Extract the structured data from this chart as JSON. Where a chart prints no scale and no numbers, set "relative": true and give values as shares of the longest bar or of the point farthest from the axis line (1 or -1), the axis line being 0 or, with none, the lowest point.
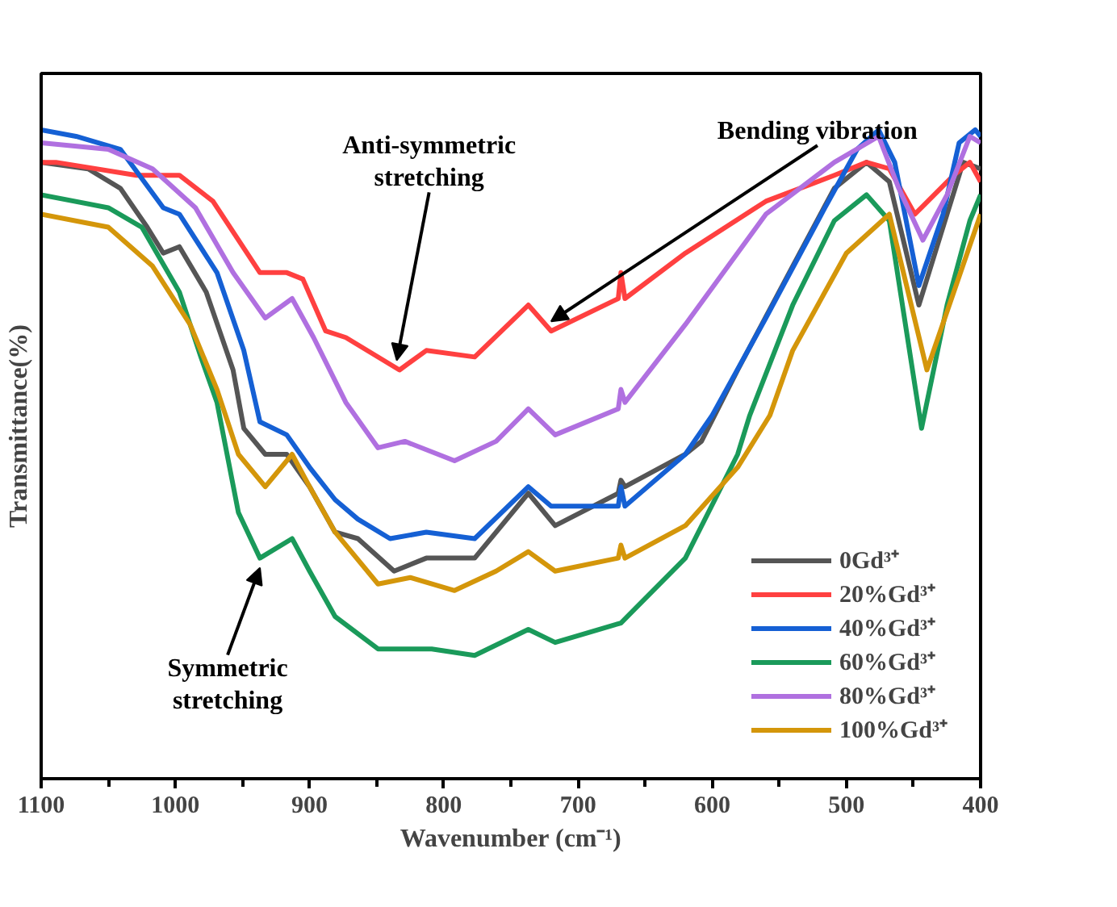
{
  "chart_data": {
    "type": "line",
    "relative": true,
    "xlabel": "Wavenumber (cm⁻¹)",
    "ylabel": "Transmittance(%)",
    "xlim": [
      1100,
      400
    ],
    "xticks": [
      1100,
      {
        "value": 1050,
        "label": null
      },
      1000,
      {
        "value": 950,
        "label": null
      },
      900,
      {
        "value": 850,
        "label": null
      },
      800,
      {
        "value": 750,
        "label": null
      },
      700,
      {
        "value": 650,
        "label": null
      },
      600,
      {
        "value": 550,
        "label": null
      },
      500,
      {
        "value": 450,
        "label": null
      },
      400
    ],
    "grid": false,
    "legend": "bottom right",
    "marker": "none",
    "line_style": "solid",
    "annotations": [
      {
        "text": "Anti-symmetric\nstretching",
        "x": 835,
        "y": 0.63
      },
      {
        "text": "Bending vibration",
        "x": 720,
        "y": 0.69
      },
      {
        "text": "Symmetric\nstretching",
        "x": 937,
        "y": 0.34
      }
    ],
    "series": [
      {
        "name": "0Gd³⁺",
        "color": "#555555",
        "x": [
          1100,
          1065,
          1041,
          1021,
          1009,
          997,
          977,
          957,
          949,
          933,
          917,
          900,
          881,
          864,
          837,
          813,
          777,
          737,
          717,
          670,
          668,
          665,
          620,
          608,
          581,
          540,
          509,
          485,
          468,
          446,
          425,
          413,
          400
        ],
        "values": [
          0.95,
          0.94,
          0.91,
          0.85,
          0.81,
          0.82,
          0.75,
          0.63,
          0.54,
          0.5,
          0.5,
          0.45,
          0.38,
          0.37,
          0.32,
          0.34,
          0.34,
          0.44,
          0.39,
          0.44,
          0.46,
          0.45,
          0.5,
          0.52,
          0.63,
          0.79,
          0.91,
          0.95,
          0.92,
          0.73,
          0.87,
          0.95,
          0.94
        ]
      },
      {
        "name": "20%Gd³⁺",
        "color": "#ff4040",
        "x": [
          1100,
          1089,
          1029,
          997,
          972,
          937,
          917,
          905,
          888,
          873,
          833,
          813,
          777,
          737,
          720,
          670,
          668,
          665,
          620,
          560,
          509,
          485,
          468,
          449,
          420,
          408,
          400
        ],
        "values": [
          0.95,
          0.95,
          0.93,
          0.93,
          0.89,
          0.78,
          0.78,
          0.77,
          0.69,
          0.68,
          0.63,
          0.66,
          0.65,
          0.73,
          0.69,
          0.74,
          0.78,
          0.74,
          0.81,
          0.89,
          0.93,
          0.95,
          0.94,
          0.87,
          0.93,
          0.95,
          0.92
        ]
      },
      {
        "name": "40%Gd³⁺",
        "color": "#1560d4",
        "x": [
          1100,
          1074,
          1041,
          1009,
          997,
          969,
          949,
          937,
          917,
          900,
          881,
          864,
          840,
          813,
          777,
          737,
          720,
          670,
          668,
          665,
          620,
          600,
          560,
          516,
          492,
          476,
          464,
          446,
          428,
          416,
          404,
          400
        ],
        "values": [
          1.0,
          0.99,
          0.97,
          0.88,
          0.87,
          0.78,
          0.66,
          0.55,
          0.53,
          0.48,
          0.43,
          0.4,
          0.37,
          0.38,
          0.37,
          0.45,
          0.42,
          0.42,
          0.45,
          0.42,
          0.5,
          0.56,
          0.71,
          0.88,
          0.97,
          1.0,
          0.95,
          0.76,
          0.87,
          0.98,
          1.0,
          0.99
        ]
      },
      {
        "name": "60%Gd³⁺",
        "color": "#1a9a5a",
        "x": [
          1100,
          1050,
          1025,
          997,
          981,
          969,
          953,
          937,
          913,
          900,
          881,
          849,
          809,
          777,
          737,
          717,
          668,
          620,
          581,
          572,
          540,
          509,
          485,
          468,
          444,
          425,
          408,
          400
        ],
        "values": [
          0.9,
          0.88,
          0.85,
          0.75,
          0.65,
          0.58,
          0.41,
          0.34,
          0.37,
          0.32,
          0.25,
          0.2,
          0.2,
          0.19,
          0.23,
          0.21,
          0.24,
          0.34,
          0.5,
          0.56,
          0.73,
          0.86,
          0.9,
          0.86,
          0.54,
          0.73,
          0.86,
          0.9
        ]
      },
      {
        "name": "80%Gd³⁺",
        "color": "#b070e0",
        "x": [
          1100,
          1050,
          1017,
          985,
          957,
          933,
          913,
          897,
          873,
          849,
          829,
          792,
          761,
          737,
          717,
          670,
          668,
          665,
          620,
          560,
          509,
          476,
          461,
          443,
          425,
          408,
          400
        ],
        "values": [
          0.98,
          0.97,
          0.94,
          0.88,
          0.78,
          0.71,
          0.74,
          0.68,
          0.58,
          0.51,
          0.52,
          0.49,
          0.52,
          0.57,
          0.53,
          0.57,
          0.6,
          0.58,
          0.7,
          0.87,
          0.95,
          0.99,
          0.91,
          0.83,
          0.9,
          0.99,
          0.98
        ]
      },
      {
        "name": "100%Gd³⁺",
        "color": "#d4960a",
        "x": [
          1100,
          1050,
          1017,
          989,
          969,
          953,
          933,
          913,
          900,
          881,
          849,
          825,
          792,
          761,
          737,
          717,
          670,
          668,
          665,
          620,
          581,
          557,
          540,
          500,
          468,
          440,
          420,
          400
        ],
        "values": [
          0.87,
          0.85,
          0.79,
          0.7,
          0.6,
          0.5,
          0.45,
          0.5,
          0.45,
          0.38,
          0.3,
          0.31,
          0.29,
          0.32,
          0.35,
          0.32,
          0.34,
          0.36,
          0.34,
          0.39,
          0.48,
          0.56,
          0.66,
          0.81,
          0.87,
          0.63,
          0.75,
          0.87
        ]
      }
    ]
  }
}
